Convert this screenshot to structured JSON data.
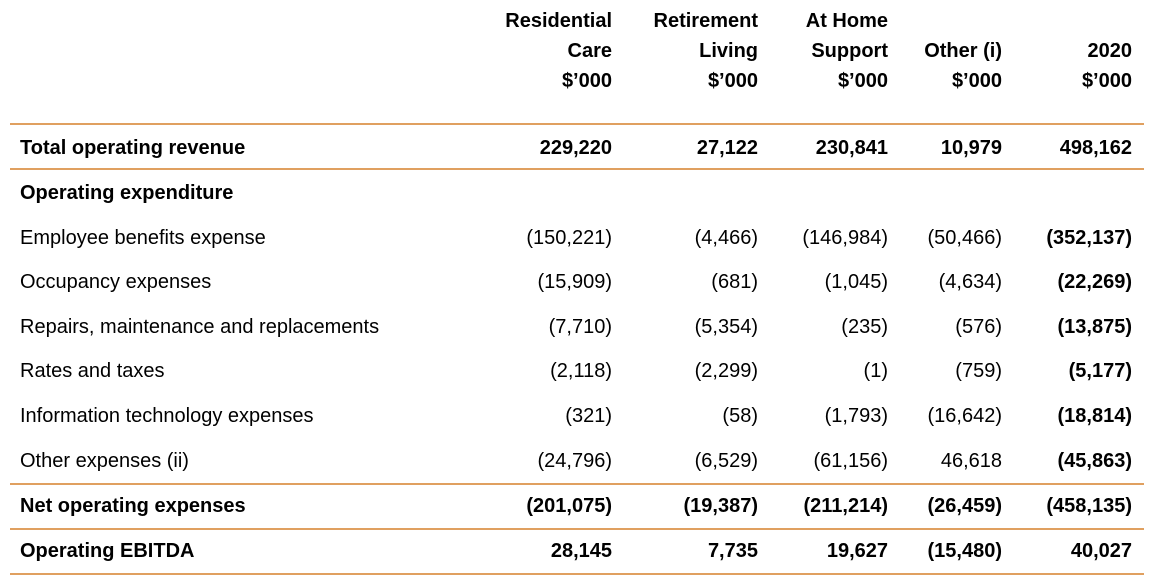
{
  "columns": [
    {
      "lines": [
        "Residential",
        "Care",
        "$’000"
      ]
    },
    {
      "lines": [
        "Retirement",
        "Living",
        "$’000"
      ]
    },
    {
      "lines": [
        "At Home",
        "Support",
        "$’000"
      ]
    },
    {
      "lines": [
        "Other (i)",
        "$’000"
      ]
    },
    {
      "lines": [
        "2020",
        "$’000"
      ]
    }
  ],
  "rows": [
    {
      "label": "Total operating revenue",
      "values": [
        "229,220",
        "27,122",
        "230,841",
        "10,979",
        "498,162"
      ]
    },
    {
      "label": "Operating expenditure",
      "values": []
    },
    {
      "label": "Employee benefits expense",
      "values": [
        "(150,221)",
        "(4,466)",
        "(146,984)",
        "(50,466)",
        "(352,137)"
      ]
    },
    {
      "label": "Occupancy expenses",
      "values": [
        "(15,909)",
        "(681)",
        "(1,045)",
        "(4,634)",
        "(22,269)"
      ]
    },
    {
      "label": "Repairs, maintenance and replacements",
      "values": [
        "(7,710)",
        "(5,354)",
        "(235)",
        "(576)",
        "(13,875)"
      ]
    },
    {
      "label": "Rates and taxes",
      "values": [
        "(2,118)",
        "(2,299)",
        "(1)",
        "(759)",
        "(5,177)"
      ]
    },
    {
      "label": "Information technology expenses",
      "values": [
        "(321)",
        "(58)",
        "(1,793)",
        "(16,642)",
        "(18,814)"
      ]
    },
    {
      "label": "Other expenses (ii)",
      "values": [
        "(24,796)",
        "(6,529)",
        "(61,156)",
        "46,618",
        "(45,863)"
      ]
    },
    {
      "label": "Net operating expenses",
      "values": [
        "(201,075)",
        "(19,387)",
        "(211,214)",
        "(26,459)",
        "(458,135)"
      ]
    },
    {
      "label": "Operating EBITDA",
      "values": [
        "28,145",
        "7,735",
        "19,627",
        "(15,480)",
        "40,027"
      ]
    }
  ],
  "colors": {
    "rule": "#e0a060",
    "text": "#000000"
  }
}
